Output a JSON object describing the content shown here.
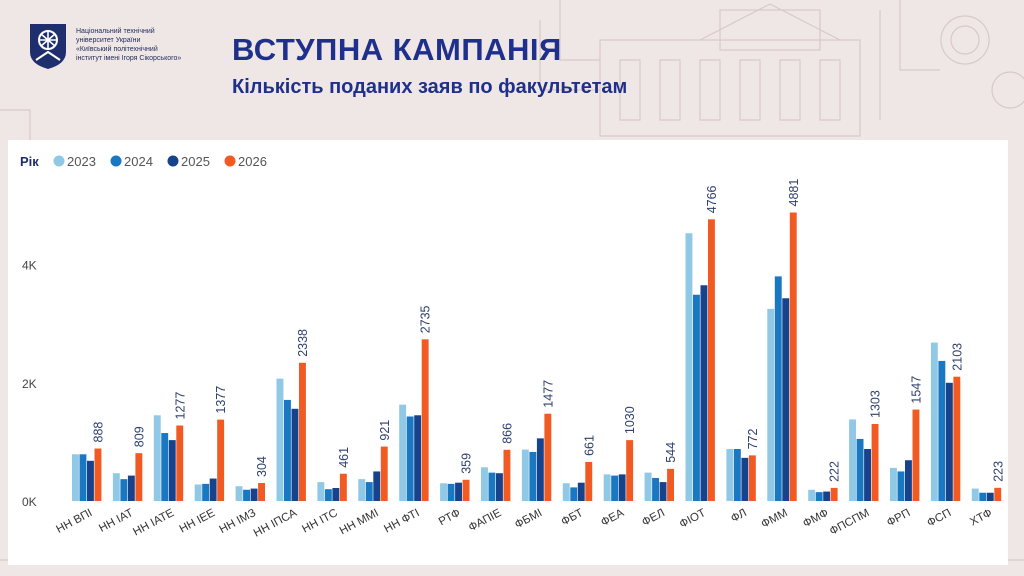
{
  "header": {
    "org_lines": [
      "Національний технічний",
      "університет України",
      "«Київський політехнічний",
      "інститут імені Ігоря Сікорського»"
    ],
    "title": "ВСТУПНА КАМПАНІЯ",
    "subtitle": "Кількість поданих заяв по факультетам"
  },
  "colors": {
    "title": "#1f2f8c",
    "series": [
      "#8fc9e6",
      "#1a78c2",
      "#17428c",
      "#f15a22"
    ]
  },
  "chart_data": {
    "type": "bar",
    "legend_title": "Рік",
    "legend_position": "top-left",
    "categories": [
      "НН ВПІ",
      "НН ІАТ",
      "НН ІАТЕ",
      "НН ІЕЕ",
      "НН ІМЗ",
      "НН ІПСА",
      "НН ІТС",
      "НН ММІ",
      "НН ФТІ",
      "РТФ",
      "ФАПІЕ",
      "ФБМІ",
      "ФБТ",
      "ФЕА",
      "ФЕЛ",
      "ФІОТ",
      "ФЛ",
      "ФММ",
      "ФМФ",
      "ФПСПМ",
      "ФРП",
      "ФСП",
      "ХТФ"
    ],
    "series": [
      {
        "name": "2023",
        "values": [
          790,
          470,
          1450,
          280,
          250,
          2070,
          320,
          370,
          1630,
          300,
          570,
          870,
          300,
          450,
          480,
          4530,
          880,
          3250,
          190,
          1380,
          560,
          2680,
          210
        ]
      },
      {
        "name": "2024",
        "values": [
          790,
          370,
          1150,
          290,
          190,
          1710,
          200,
          320,
          1430,
          290,
          480,
          830,
          230,
          430,
          390,
          3490,
          880,
          3800,
          150,
          1050,
          500,
          2370,
          140
        ]
      },
      {
        "name": "2025",
        "values": [
          680,
          430,
          1030,
          380,
          210,
          1560,
          220,
          500,
          1450,
          310,
          470,
          1060,
          310,
          450,
          320,
          3650,
          730,
          3430,
          160,
          880,
          690,
          2000,
          140
        ]
      },
      {
        "name": "2026",
        "values": [
          888,
          809,
          1277,
          1377,
          304,
          2338,
          461,
          921,
          2735,
          359,
          866,
          1477,
          661,
          1030,
          544,
          4766,
          772,
          4881,
          222,
          1303,
          1547,
          2103,
          223
        ]
      }
    ],
    "data_labels": [
      "888",
      "809",
      "1277",
      "1377",
      "304",
      "2338",
      "461",
      "921",
      "2735",
      "359",
      "866",
      "1477",
      "661",
      "1030",
      "544",
      "4766",
      "772",
      "4881",
      "222",
      "1303",
      "1547",
      "2103",
      "223"
    ],
    "ylim": [
      0,
      5600
    ],
    "yticks": [
      0,
      2000,
      4000
    ],
    "ytick_labels": [
      "0K",
      "2K",
      "4K"
    ],
    "grid": false
  }
}
